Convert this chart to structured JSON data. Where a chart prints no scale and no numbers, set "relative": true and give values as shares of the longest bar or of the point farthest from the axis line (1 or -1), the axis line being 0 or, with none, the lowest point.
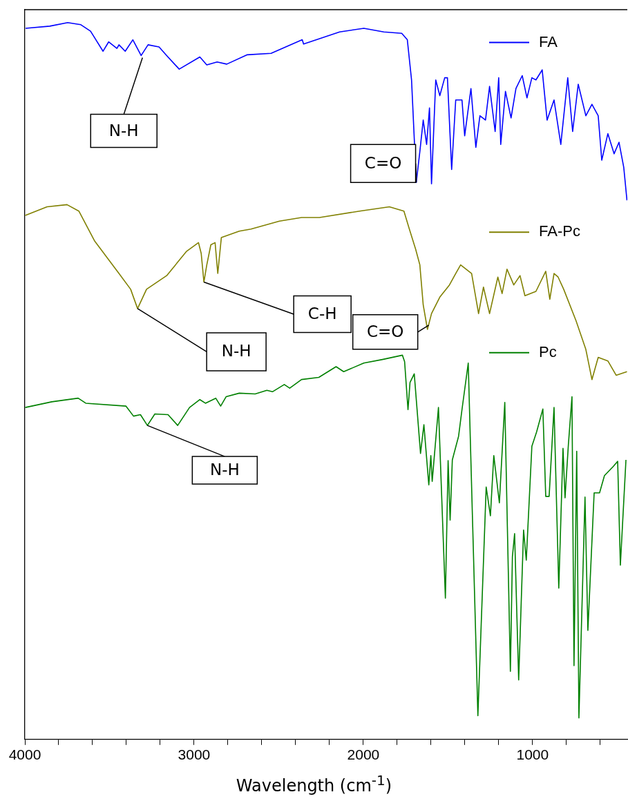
{
  "chart_data": {
    "type": "line",
    "xlabel": "Wavelength (cm$^{-1}$)",
    "relative": true,
    "grid": false,
    "legend": "top right",
    "marker": "none",
    "line_style": "solid",
    "tick_labels": "x",
    "xlim": [
      4000,
      440
    ],
    "xticks": [
      4000,
      {
        "value": 3800,
        "label": null
      },
      {
        "value": 3600,
        "label": null
      },
      {
        "value": 3400,
        "label": null
      },
      {
        "value": 3200,
        "label": null
      },
      3000,
      {
        "value": 2800,
        "label": null
      },
      {
        "value": 2600,
        "label": null
      },
      {
        "value": 2400,
        "label": null
      },
      {
        "value": 2200,
        "label": null
      },
      2000,
      {
        "value": 1800,
        "label": null
      },
      {
        "value": 1600,
        "label": null
      },
      {
        "value": 1400,
        "label": null
      },
      {
        "value": 1200,
        "label": null
      },
      1000,
      {
        "value": 800,
        "label": null
      },
      {
        "value": 600,
        "label": null
      }
    ],
    "series": [
      {
        "name": "FA",
        "color": "#0000ff",
        "x": [
          3996,
          3853,
          3747,
          3669,
          3612,
          3538,
          3505,
          3456,
          3444,
          3407,
          3362,
          3313,
          3272,
          3207,
          3162,
          3088,
          2966,
          2925,
          2864,
          2807,
          2688,
          2545,
          2361,
          2353,
          2140,
          1997,
          1879,
          1773,
          1740,
          1715,
          1687,
          1666,
          1646,
          1626,
          1609,
          1597,
          1572,
          1548,
          1519,
          1503,
          1478,
          1454,
          1417,
          1401,
          1364,
          1335,
          1311,
          1278,
          1254,
          1221,
          1200,
          1188,
          1160,
          1127,
          1098,
          1061,
          1033,
          1004,
          980,
          943,
          914,
          873,
          833,
          792,
          763,
          730,
          685,
          649,
          612,
          591,
          555,
          518,
          489,
          461,
          442
        ],
        "values": [
          0.992,
          0.995,
          1,
          0.997,
          0.988,
          0.96,
          0.973,
          0.964,
          0.969,
          0.96,
          0.976,
          0.954,
          0.969,
          0.966,
          0.954,
          0.935,
          0.952,
          0.941,
          0.945,
          0.942,
          0.955,
          0.957,
          0.976,
          0.97,
          0.987,
          0.992,
          0.987,
          0.985,
          0.976,
          0.92,
          0.777,
          0.82,
          0.864,
          0.83,
          0.881,
          0.775,
          0.92,
          0.898,
          0.923,
          0.923,
          0.795,
          0.892,
          0.892,
          0.842,
          0.908,
          0.826,
          0.87,
          0.864,
          0.911,
          0.848,
          0.923,
          0.83,
          0.904,
          0.867,
          0.908,
          0.926,
          0.895,
          0.923,
          0.92,
          0.934,
          0.864,
          0.892,
          0.83,
          0.923,
          0.848,
          0.914,
          0.87,
          0.886,
          0.87,
          0.808,
          0.845,
          0.817,
          0.833,
          0.798,
          0.752
        ]
      },
      {
        "name": "FA-Pc",
        "color": "#808000",
        "x": [
          3998,
          3869,
          3751,
          3681,
          3587,
          3444,
          3375,
          3334,
          3281,
          3162,
          3044,
          2974,
          2958,
          2942,
          2925,
          2901,
          2876,
          2860,
          2839,
          2733,
          2664,
          2496,
          2365,
          2259,
          2022,
          1846,
          1760,
          1728,
          1691,
          1666,
          1646,
          1621,
          1597,
          1548,
          1491,
          1454,
          1425,
          1360,
          1319,
          1290,
          1254,
          1205,
          1180,
          1151,
          1111,
          1074,
          1045,
          980,
          922,
          898,
          873,
          849,
          816,
          743,
          685,
          649,
          612,
          555,
          506,
          442
        ],
        "values": [
          0.731,
          0.743,
          0.746,
          0.737,
          0.695,
          0.65,
          0.628,
          0.601,
          0.628,
          0.647,
          0.681,
          0.693,
          0.678,
          0.638,
          0.662,
          0.69,
          0.693,
          0.65,
          0.7,
          0.709,
          0.712,
          0.723,
          0.728,
          0.728,
          0.737,
          0.743,
          0.737,
          0.712,
          0.684,
          0.662,
          0.606,
          0.572,
          0.594,
          0.617,
          0.634,
          0.65,
          0.662,
          0.65,
          0.594,
          0.631,
          0.594,
          0.645,
          0.622,
          0.656,
          0.634,
          0.647,
          0.619,
          0.625,
          0.653,
          0.614,
          0.65,
          0.645,
          0.628,
          0.584,
          0.544,
          0.502,
          0.533,
          0.528,
          0.508,
          0.513
        ]
      },
      {
        "name": "Pc",
        "color": "#008000",
        "x": [
          3998,
          3841,
          3685,
          3640,
          3403,
          3358,
          3317,
          3276,
          3232,
          3154,
          3097,
          3027,
          2966,
          2933,
          2872,
          2843,
          2811,
          2733,
          2639,
          2570,
          2537,
          2467,
          2435,
          2365,
          2263,
          2161,
          2116,
          1997,
          1887,
          1769,
          1756,
          1736,
          1724,
          1699,
          1662,
          1642,
          1613,
          1601,
          1593,
          1556,
          1515,
          1499,
          1487,
          1474,
          1437,
          1417,
          1380,
          1323,
          1274,
          1249,
          1229,
          1196,
          1164,
          1131,
          1119,
          1106,
          1082,
          1053,
          1037,
          1004,
          976,
          939,
          922,
          902,
          873,
          845,
          820,
          808,
          788,
          767,
          755,
          739,
          726,
          690,
          673,
          636,
          604,
          575,
          522,
          497,
          481,
          448
        ],
        "values": [
          0.463,
          0.471,
          0.476,
          0.469,
          0.465,
          0.451,
          0.453,
          0.438,
          0.454,
          0.453,
          0.438,
          0.463,
          0.474,
          0.469,
          0.476,
          0.465,
          0.478,
          0.483,
          0.482,
          0.487,
          0.485,
          0.495,
          0.49,
          0.502,
          0.505,
          0.52,
          0.513,
          0.525,
          0.53,
          0.536,
          0.527,
          0.46,
          0.498,
          0.51,
          0.399,
          0.439,
          0.355,
          0.396,
          0.36,
          0.463,
          0.197,
          0.389,
          0.306,
          0.39,
          0.423,
          0.46,
          0.525,
          0.033,
          0.352,
          0.312,
          0.396,
          0.33,
          0.47,
          0.095,
          0.255,
          0.287,
          0.083,
          0.292,
          0.25,
          0.409,
          0.429,
          0.461,
          0.339,
          0.339,
          0.463,
          0.211,
          0.406,
          0.337,
          0.412,
          0.478,
          0.103,
          0.402,
          0.03,
          0.338,
          0.152,
          0.344,
          0.344,
          0.368,
          0.381,
          0.388,
          0.243,
          0.39
        ]
      }
    ],
    "annotations": [
      {
        "text": "N-H",
        "x": 3305,
        "y": 0.951
      },
      {
        "text": "C=O",
        "x": 1687,
        "y": 0.777
      },
      {
        "text": "N-H",
        "x": 3334,
        "y": 0.601
      },
      {
        "text": "C-H",
        "x": 2942,
        "y": 0.638
      },
      {
        "text": "C=O",
        "x": 1613,
        "y": 0.578
      },
      {
        "text": "N-H",
        "x": 3276,
        "y": 0.438
      }
    ]
  }
}
